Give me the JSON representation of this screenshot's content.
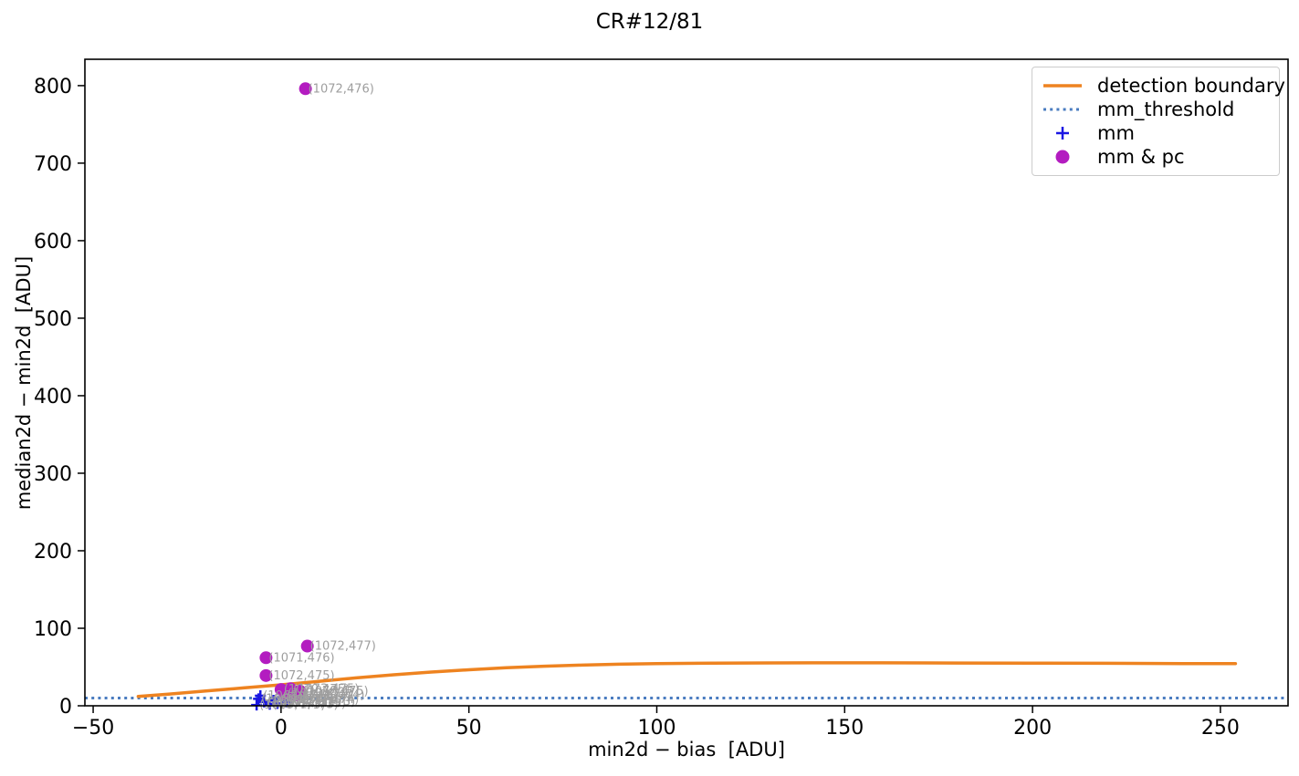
{
  "chart_data": {
    "type": "scatter",
    "title": "CR#12/81",
    "xlabel": "min2d − bias  [ADU]",
    "ylabel": "median2d − min2d  [ADU]",
    "xlim": [
      -52.2,
      268.0
    ],
    "ylim": [
      0,
      834
    ],
    "xticks": [
      -50,
      0,
      50,
      100,
      150,
      200,
      250
    ],
    "xtick_labels": [
      "−50",
      "0",
      "50",
      "100",
      "150",
      "200",
      "250"
    ],
    "yticks": [
      0,
      100,
      200,
      300,
      400,
      500,
      600,
      700,
      800
    ],
    "ytick_labels": [
      "0",
      "100",
      "200",
      "300",
      "400",
      "500",
      "600",
      "700",
      "800"
    ],
    "grid": false,
    "colors": {
      "boundary": "#ee8320",
      "threshold": "#4a7cc0",
      "mm": "#1a16e3",
      "mm_pc": "#b31cc0",
      "annotation": "#9e9e9e",
      "axes": "#000000"
    },
    "mm_threshold": 10,
    "boundary": [
      [
        -38,
        12
      ],
      [
        -30,
        15
      ],
      [
        -20,
        19
      ],
      [
        -10,
        23
      ],
      [
        0,
        27
      ],
      [
        10,
        31.5
      ],
      [
        20,
        36
      ],
      [
        30,
        40
      ],
      [
        40,
        43.5
      ],
      [
        50,
        46.5
      ],
      [
        60,
        49
      ],
      [
        70,
        51
      ],
      [
        80,
        52.5
      ],
      [
        90,
        53.6
      ],
      [
        100,
        54.3
      ],
      [
        115,
        55
      ],
      [
        130,
        55.3
      ],
      [
        145,
        55.4
      ],
      [
        160,
        55.4
      ],
      [
        180,
        55.2
      ],
      [
        200,
        55
      ],
      [
        220,
        54.8
      ],
      [
        240,
        54.5
      ],
      [
        254,
        54.3
      ]
    ],
    "legend": {
      "position": "upper right",
      "entries": [
        {
          "label": "detection boundary",
          "type": "line",
          "color": "#ee8320"
        },
        {
          "label": "mm_threshold",
          "type": "dotted",
          "color": "#4a7cc0"
        },
        {
          "label": "mm",
          "type": "plus",
          "color": "#1a16e3"
        },
        {
          "label": "mm & pc",
          "type": "circle",
          "color": "#b31cc0"
        }
      ]
    },
    "series": [
      {
        "name": "mm",
        "marker": "plus",
        "color": "#1a16e3",
        "points": [
          {
            "x": -6,
            "y": 9,
            "label": "(1069,474)"
          },
          {
            "x": -5.5,
            "y": 13,
            "label": "(1068,474)"
          },
          {
            "x": -4.5,
            "y": 5,
            "label": "(1070,473)"
          },
          {
            "x": -3,
            "y": 2,
            "label": "(1071,473)"
          },
          {
            "x": -2,
            "y": 7,
            "label": "(1072,474)"
          },
          {
            "x": -1,
            "y": 3,
            "label": "(1074,473)"
          },
          {
            "x": 0.5,
            "y": 11,
            "label": "(1075,474)"
          },
          {
            "x": 1.5,
            "y": 5,
            "label": "(1076,473)"
          },
          {
            "x": 2.5,
            "y": 8,
            "label": "(1077,474)"
          },
          {
            "x": -6.5,
            "y": 1,
            "label": "(1069,473)"
          }
        ]
      },
      {
        "name": "mm & pc",
        "marker": "circle",
        "color": "#b31cc0",
        "points": [
          {
            "x": 6.5,
            "y": 796,
            "label": "(1072,476)"
          },
          {
            "x": 7,
            "y": 77,
            "label": "(1072,477)"
          },
          {
            "x": -4,
            "y": 62,
            "label": "(1071,476)"
          },
          {
            "x": -4,
            "y": 39,
            "label": "(1072,475)"
          },
          {
            "x": 0,
            "y": 21,
            "label": "(1070,475)"
          },
          {
            "x": 2.5,
            "y": 22,
            "label": "(1073,475)"
          },
          {
            "x": 5,
            "y": 19,
            "label": "(1078,475)"
          },
          {
            "x": 1,
            "y": 16,
            "label": "(1073,474)"
          },
          {
            "x": 4,
            "y": 14,
            "label": "(1076,474)"
          }
        ]
      }
    ]
  }
}
